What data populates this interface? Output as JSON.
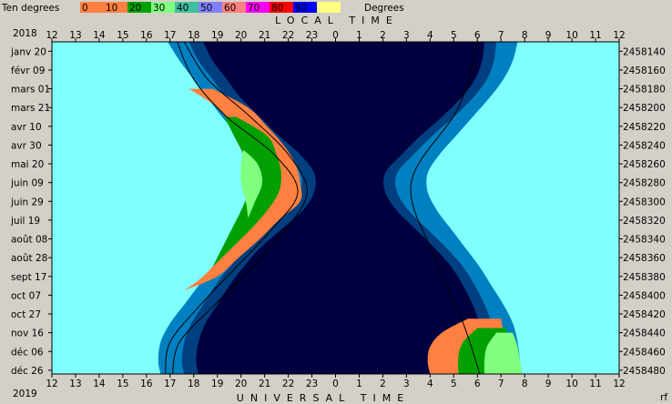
{
  "chart_data": {
    "type": "area",
    "legend": {
      "label": "Ten degrees",
      "end_label": "Degrees",
      "items": [
        {
          "label": "0",
          "color": "#ff8040"
        },
        {
          "label": "10",
          "color": "#ff8040"
        },
        {
          "label": "20",
          "color": "#00a000"
        },
        {
          "label": "30",
          "color": "#80ff80"
        },
        {
          "label": "40",
          "color": "#40c0a0"
        },
        {
          "label": "50",
          "color": "#8080ff"
        },
        {
          "label": "60",
          "color": "#ff8080"
        },
        {
          "label": "70",
          "color": "#ff00ff"
        },
        {
          "label": "80",
          "color": "#ff0000"
        },
        {
          "label": "90",
          "color": "#0000ff"
        },
        {
          "label": "",
          "color": "#ffff80"
        }
      ]
    },
    "top_title": "LOCAL TIME",
    "bottom_title": "UNIVERSAL TIME",
    "year_top": "2018",
    "year_bottom": "2019",
    "corner_label": "rf",
    "x_ticks": [
      "12",
      "13",
      "14",
      "15",
      "16",
      "17",
      "18",
      "19",
      "20",
      "21",
      "22",
      "23",
      "0",
      "1",
      "2",
      "3",
      "4",
      "5",
      "6",
      "7",
      "8",
      "9",
      "10",
      "11",
      "12"
    ],
    "x_range_hours": [
      12,
      36
    ],
    "dates": [
      "janv 20",
      "févr 09",
      "mars 01",
      "mars 21",
      "avr 10",
      "avr 30",
      "mai 20",
      "juin 09",
      "juin 29",
      "juil 19",
      "août 08",
      "août 28",
      "sept 17",
      "oct 07",
      "oct 27",
      "nov 16",
      "déc 06",
      "déc 26"
    ],
    "julian_days": [
      "2458140",
      "2458160",
      "2458180",
      "2458200",
      "2458220",
      "2458240",
      "2458260",
      "2458280",
      "2458300",
      "2458320",
      "2458340",
      "2458360",
      "2458380",
      "2458400",
      "2458420",
      "2458440",
      "2458460",
      "2458480"
    ],
    "y_range_jd": [
      2458130,
      2458484
    ],
    "colors": {
      "day": "#80ffff",
      "night": "#000040",
      "civil_twilight": "#0080c0",
      "nautical_twilight": "#004080",
      "band_orange": "#ff8040",
      "band_green": "#00a000",
      "band_lightgreen": "#80ff80"
    },
    "series": [
      {
        "name": "civil",
        "jd": [
          2458130,
          2458150,
          2458170,
          2458190,
          2458210,
          2458230,
          2458250,
          2458270,
          2458290,
          2458310,
          2458330,
          2458350,
          2458370,
          2458390,
          2458410,
          2458430,
          2458450,
          2458470,
          2458484
        ],
        "evening": [
          16.9,
          17.4,
          18.0,
          18.6,
          19.2,
          19.9,
          20.5,
          20.9,
          20.9,
          20.6,
          20.1,
          19.4,
          18.8,
          18.2,
          17.6,
          17.0,
          16.6,
          16.5,
          16.6
        ],
        "morning": [
          31.7,
          31.5,
          31.1,
          30.5,
          29.8,
          29.1,
          28.4,
          27.9,
          27.9,
          28.3,
          28.9,
          29.5,
          30.1,
          30.6,
          31.1,
          31.5,
          31.7,
          31.8,
          31.8
        ]
      },
      {
        "name": "nautical",
        "jd": [
          2458130,
          2458150,
          2458170,
          2458190,
          2458210,
          2458230,
          2458250,
          2458270,
          2458290,
          2458310,
          2458330,
          2458350,
          2458370,
          2458390,
          2458410,
          2458430,
          2458450,
          2458470,
          2458484
        ],
        "evening": [
          17.8,
          18.2,
          18.8,
          19.4,
          20.2,
          21.0,
          21.9,
          22.5,
          22.5,
          22.0,
          21.1,
          20.2,
          19.5,
          18.9,
          18.4,
          17.9,
          17.6,
          17.5,
          17.6
        ],
        "morning": [
          30.8,
          30.7,
          30.4,
          29.8,
          29.0,
          28.1,
          27.3,
          26.6,
          26.6,
          27.1,
          27.9,
          28.7,
          29.4,
          29.9,
          30.3,
          30.6,
          30.8,
          30.9,
          30.9
        ]
      },
      {
        "name": "orange_band",
        "jd": [
          2458180,
          2458200,
          2458220,
          2458240,
          2458260,
          2458280,
          2458300,
          2458320,
          2458340,
          2458360,
          2458380,
          2458395
        ],
        "start": [
          17.8,
          19.0,
          19.6,
          19.9,
          20.3,
          20.5,
          20.4,
          20.0,
          19.6,
          19.1,
          18.4,
          17.6
        ],
        "end": [
          18.8,
          20.3,
          21.1,
          21.8,
          22.3,
          22.5,
          22.5,
          21.6,
          20.8,
          19.9,
          19.0,
          17.6
        ]
      },
      {
        "name": "orange_band_morning",
        "jd": [
          2458425,
          2458440,
          2458455,
          2458470,
          2458484
        ],
        "start": [
          29.6,
          28.5,
          28.0,
          27.9,
          28.0
        ],
        "end": [
          31.0,
          31.1,
          31.2,
          31.3,
          31.3
        ]
      },
      {
        "name": "green_band",
        "jd": [
          2458210,
          2458230,
          2458250,
          2458270,
          2458290,
          2458310,
          2458330,
          2458350,
          2458370
        ],
        "start": [
          19.3,
          19.7,
          20.1,
          20.3,
          20.3,
          20.0,
          19.6,
          19.2,
          18.8
        ],
        "end": [
          19.8,
          21.1,
          21.5,
          21.7,
          21.6,
          21.1,
          20.4,
          19.6,
          18.8
        ]
      },
      {
        "name": "green_band_morning",
        "jd": [
          2458435,
          2458450,
          2458465,
          2458484
        ],
        "start": [
          30.0,
          29.4,
          29.2,
          29.2
        ],
        "end": [
          31.2,
          31.4,
          31.5,
          31.6
        ]
      },
      {
        "name": "lightgreen_band",
        "jd": [
          2458245,
          2458260,
          2458280,
          2458300,
          2458318
        ],
        "start": [
          20.1,
          20.0,
          20.0,
          20.2,
          20.3
        ],
        "end": [
          20.1,
          20.7,
          20.9,
          20.6,
          20.3
        ]
      },
      {
        "name": "lightgreen_band_morning",
        "jd": [
          2458440,
          2458455,
          2458470,
          2458484
        ],
        "start": [
          30.8,
          30.4,
          30.3,
          30.3
        ],
        "end": [
          31.5,
          31.7,
          31.8,
          31.9
        ]
      },
      {
        "name": "line_a",
        "jd": [
          2458130,
          2458170,
          2458210,
          2458250,
          2458290,
          2458330,
          2458370,
          2458410,
          2458450,
          2458484
        ],
        "x": [
          17.3,
          18.0,
          19.4,
          21.4,
          22.4,
          21.3,
          19.8,
          18.3,
          17.0,
          16.8
        ]
      },
      {
        "name": "line_b",
        "jd": [
          2458130,
          2458170,
          2458210,
          2458250,
          2458290,
          2458330,
          2458370,
          2458410,
          2458450,
          2458484
        ],
        "x": [
          17.6,
          18.6,
          20.4,
          22.0,
          22.8,
          21.9,
          20.5,
          18.9,
          17.4,
          17.1
        ]
      },
      {
        "name": "line_c",
        "jd": [
          2458130,
          2458200,
          2458280,
          2458360,
          2458430,
          2458484
        ],
        "x": [
          30.0,
          29.2,
          27.2,
          28.2,
          29.4,
          30.1
        ]
      }
    ]
  }
}
